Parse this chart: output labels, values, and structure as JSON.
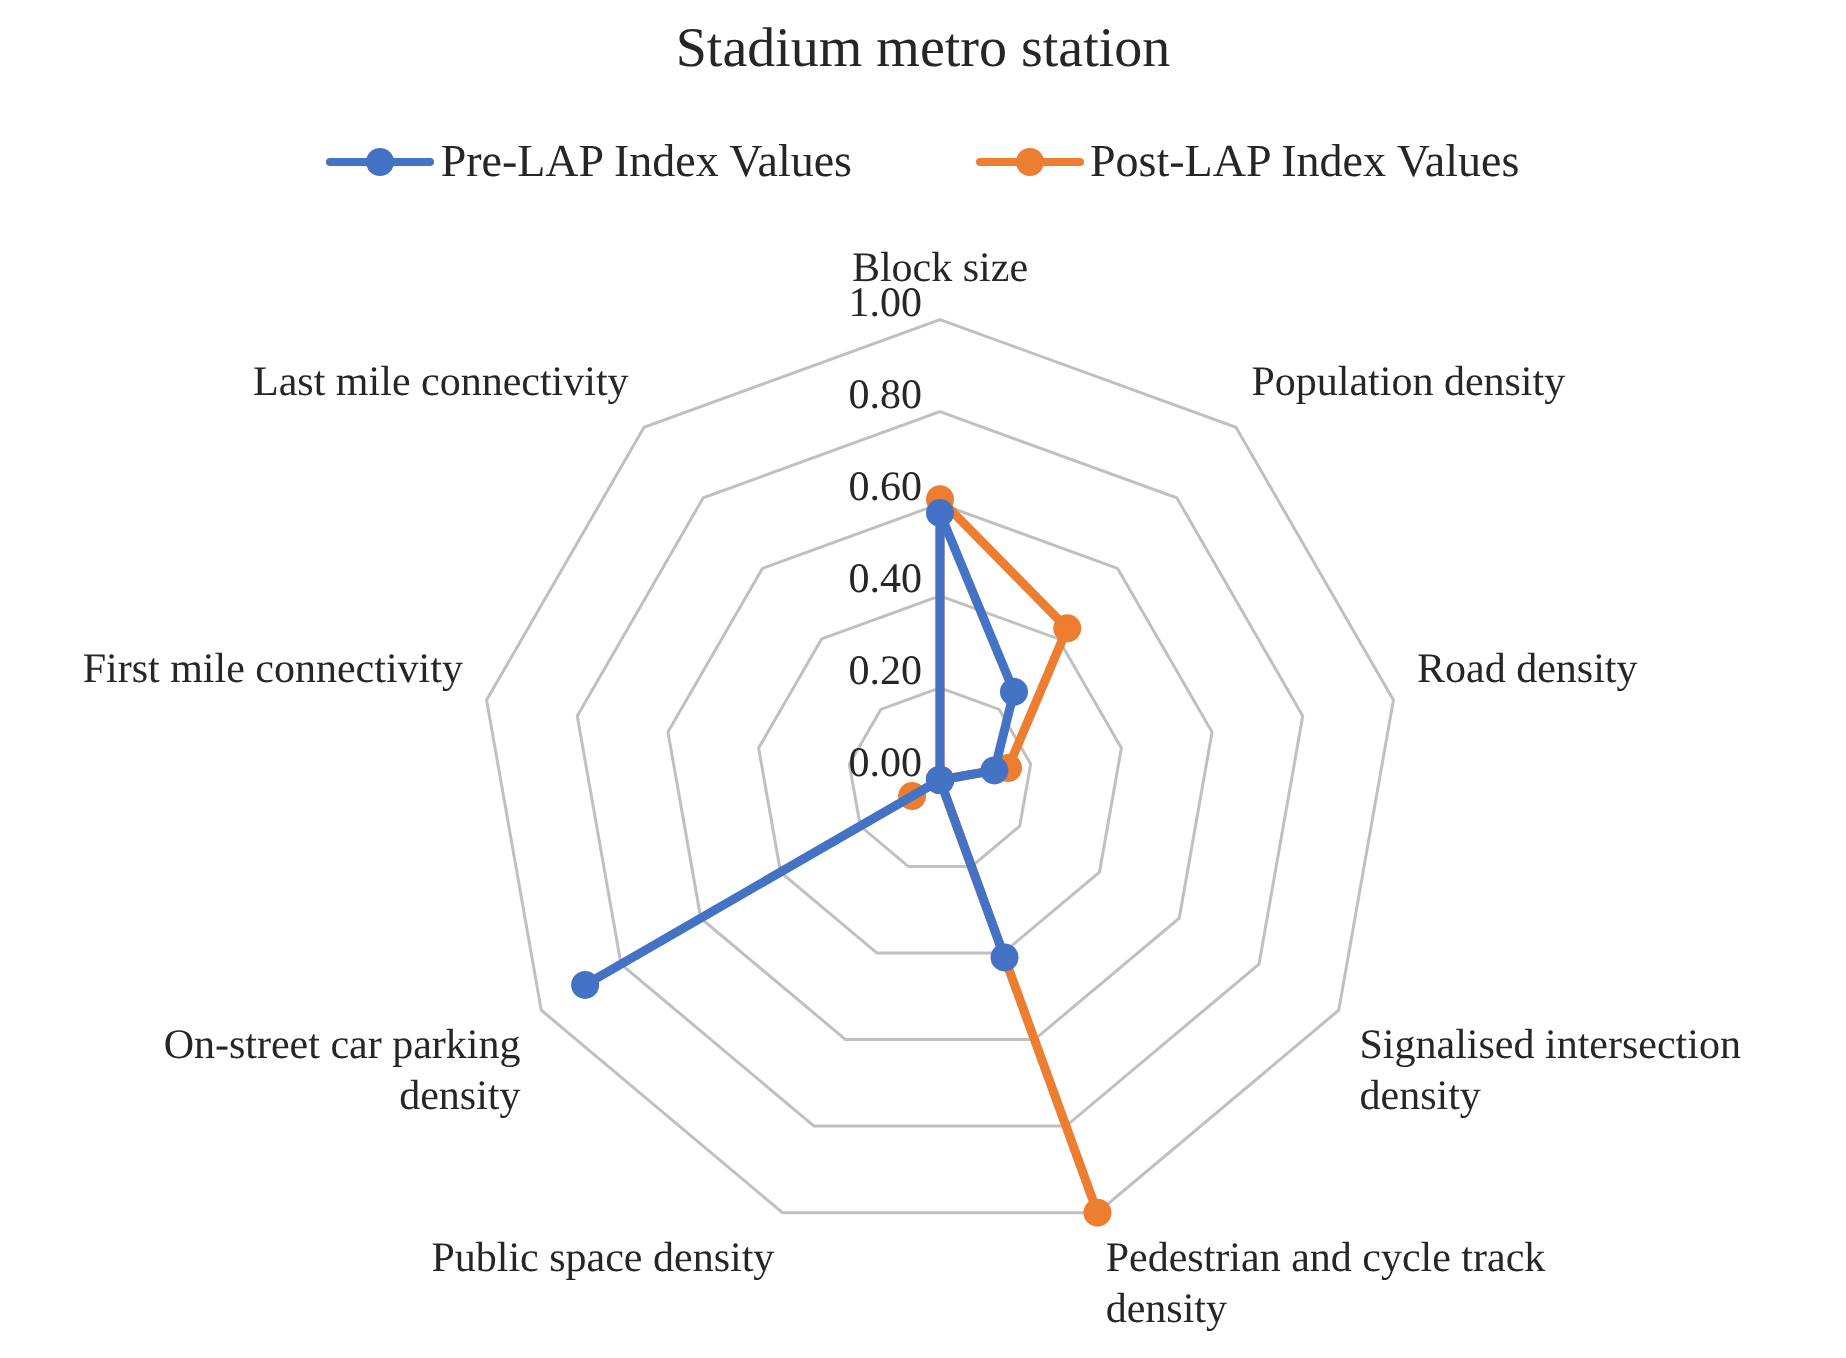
{
  "chart_data": {
    "type": "radar",
    "title": "Stadium metro station",
    "categories": [
      "Block size",
      "Population density",
      "Road density",
      "Signalised intersection density",
      "Pedestrian and cycle track density",
      "Public space density",
      "On-street car parking density",
      "First mile connectivity",
      "Last mile connectivity"
    ],
    "series": [
      {
        "name": "Pre-LAP Index Values",
        "color": "#4472c4",
        "values": [
          0.58,
          0.25,
          0.12,
          0,
          0.41,
          0,
          0.89,
          0,
          0
        ]
      },
      {
        "name": "Post-LAP Index Values",
        "color": "#ed7d31",
        "values": [
          0.61,
          0.43,
          0.15,
          0,
          1.0,
          0,
          0.07,
          0,
          0
        ]
      }
    ],
    "ylim": [
      0,
      1
    ],
    "yticks": [
      {
        "value": 0,
        "label": "0.00"
      },
      {
        "value": 0.2,
        "label": "0.20"
      },
      {
        "value": 0.4,
        "label": "0.40"
      },
      {
        "value": 0.6,
        "label": "0.60"
      },
      {
        "value": 0.8,
        "label": "0.80"
      },
      {
        "value": 1,
        "label": "1.00"
      }
    ],
    "grid": true,
    "legend": "top",
    "marker": "circle"
  }
}
